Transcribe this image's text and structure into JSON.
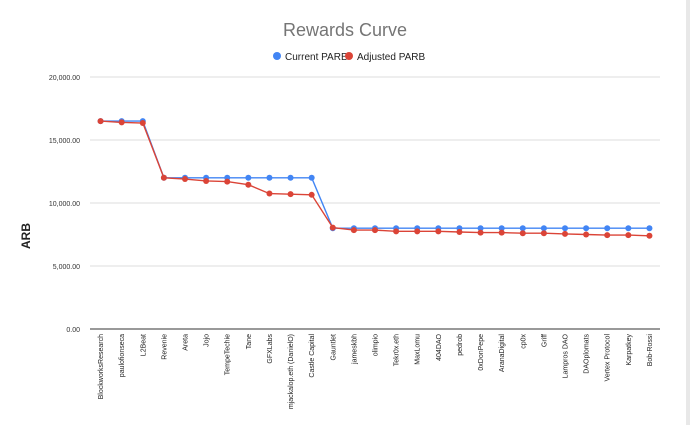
{
  "chart_data": {
    "type": "line",
    "title": "Rewards Curve",
    "xlabel": "",
    "ylabel": "ARB",
    "ylim": [
      0,
      20000
    ],
    "yticks": [
      "0.00",
      "5,000.00",
      "10,000.00",
      "15,000.00",
      "20,000.00"
    ],
    "ytick_values": [
      0,
      5000,
      10000,
      15000,
      20000
    ],
    "grid": true,
    "legend_position": "top-center",
    "categories": [
      "BlockworksResearch",
      "pauloﬁonseca",
      "L2Beat",
      "Revenie",
      "Areta",
      "Jojo",
      "TempeTechie",
      "Tane",
      "GFXLabs",
      "mjackalop.eth (DanielO)",
      "Castle Capital",
      "Gauntlet",
      "jameskbh",
      "olimpio",
      "Tekr0x.eth",
      "MaxLomu",
      "404DAO",
      "pedrob",
      "0xDonPepe",
      "AranaDigital",
      "cp0x",
      "Griff",
      "Lampros DAO",
      "DAOplomats",
      "Vertex Protocol",
      "Karpatkey",
      "Bob-Rossi"
    ],
    "series": [
      {
        "name": "Current PARB",
        "color": "#4285f4",
        "values": [
          16500,
          16500,
          16500,
          12000,
          12000,
          12000,
          12000,
          12000,
          12000,
          12000,
          12000,
          8000,
          8000,
          8000,
          8000,
          8000,
          8000,
          8000,
          8000,
          8000,
          8000,
          8000,
          8000,
          8000,
          8000,
          8000,
          8000
        ]
      },
      {
        "name": "Adjusted PARB",
        "color": "#db4437",
        "values": [
          16500,
          16400,
          16350,
          12000,
          11900,
          11750,
          11700,
          11450,
          10750,
          10700,
          10650,
          8050,
          7850,
          7850,
          7750,
          7750,
          7750,
          7700,
          7650,
          7650,
          7600,
          7600,
          7550,
          7500,
          7450,
          7450,
          7400
        ]
      }
    ]
  }
}
